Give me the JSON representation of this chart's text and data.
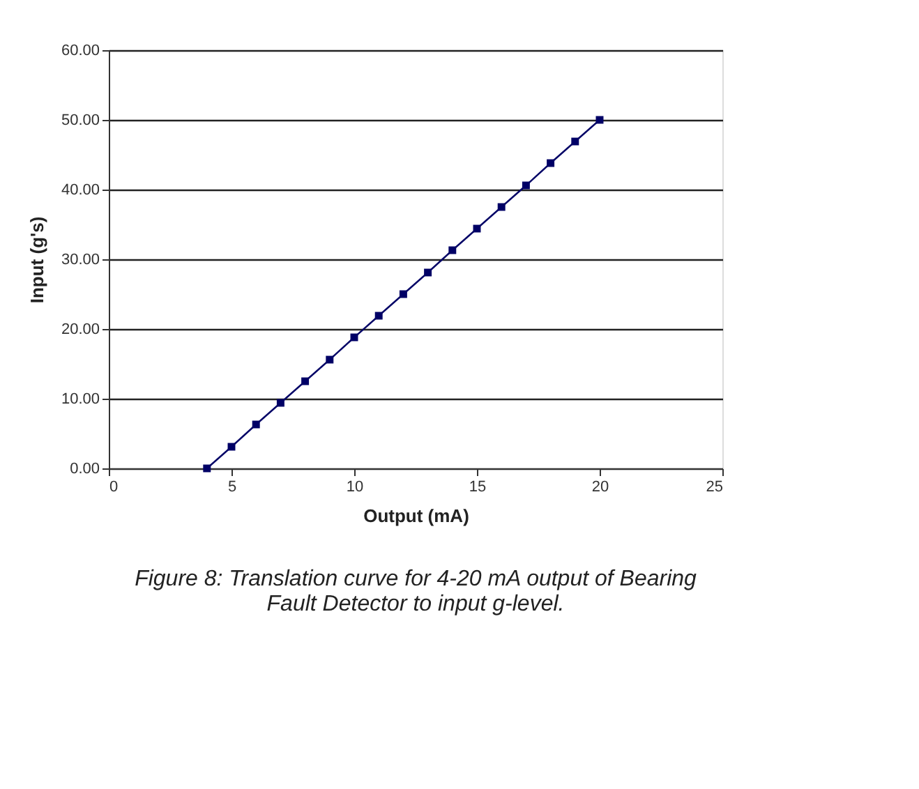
{
  "chart_data": {
    "type": "line",
    "xlabel": "Output (mA)",
    "ylabel": "Input (g's)",
    "x": [
      4,
      5,
      6,
      7,
      8,
      9,
      10,
      11,
      12,
      13,
      14,
      15,
      16,
      17,
      18,
      19,
      20
    ],
    "series": [
      {
        "color": "#000066",
        "values": [
          0,
          3.1,
          6.3,
          9.4,
          12.5,
          15.6,
          18.8,
          21.9,
          25,
          28.1,
          31.3,
          34.4,
          37.5,
          40.6,
          43.8,
          46.9,
          50
        ]
      }
    ],
    "xlim": [
      0,
      25
    ],
    "xticks": [
      0,
      5,
      10,
      15,
      20,
      25
    ],
    "ylim": [
      0,
      60
    ],
    "yticks": [
      {
        "value": 0,
        "label": "0.00"
      },
      {
        "value": 10,
        "label": "10.00"
      },
      {
        "value": 20,
        "label": "20.00"
      },
      {
        "value": 30,
        "label": "30.00"
      },
      {
        "value": 40,
        "label": "40.00"
      },
      {
        "value": 50,
        "label": "50.00"
      },
      {
        "value": 60,
        "label": "60.00"
      }
    ],
    "grid": "y",
    "marker": "square",
    "line_style": "solid",
    "annotations": [
      "Figure 8: Translation curve for 4-20 mA output of Bearing Fault Detector to input g-level."
    ]
  }
}
